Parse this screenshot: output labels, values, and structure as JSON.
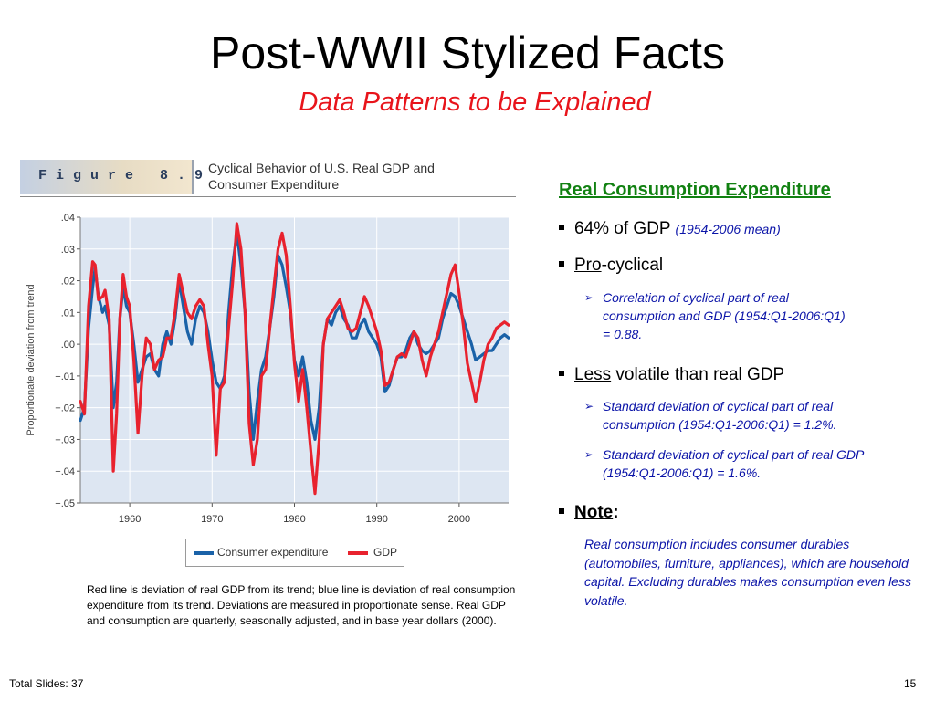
{
  "slide": {
    "title": "Post-WWII Stylized Facts",
    "subtitle": "Data Patterns to be Explained",
    "footer_left": "Total Slides: 37",
    "footer_right": "15"
  },
  "figure": {
    "tag": "Figure 8.9",
    "caption_line1": "Cyclical Behavior of U.S. Real GDP and",
    "caption_line2": "Consumer Expenditure",
    "note": "Red line is deviation of real GDP from its trend; blue line is deviation of real consumption expenditure from its trend.  Deviations are measured in proportionate sense.  Real GDP and consumption are quarterly, seasonally adjusted, and in base year dollars (2000)."
  },
  "panel": {
    "heading": "Real Consumption Expenditure",
    "share": {
      "text": "64% of GDP",
      "note": "(1954-2006 mean)"
    },
    "procyclical": {
      "prefix": "Pro",
      "suffix": "-cyclical",
      "detail": "Correlation of cyclical part of real consumption and GDP (1954:Q1-2006:Q1) = 0.88."
    },
    "volatility": {
      "prefix": "Less",
      "suffix": " volatile than real GDP",
      "detail1": "Standard deviation of cyclical part of real consumption (1954:Q1-2006:Q1) = 1.2%.",
      "detail2": "Standard deviation of cyclical part of real GDP (1954:Q1-2006:Q1) = 1.6%."
    },
    "note": {
      "label": "Note",
      "colon": ":",
      "text": "Real consumption includes consumer durables (automobiles, furniture, appliances), which are household capital. Excluding durables makes consumption even less volatile."
    }
  },
  "colors": {
    "gdp": "#e8222e",
    "consumption": "#1a62a8",
    "plot_bg": "#dde6f2",
    "heading": "#118111",
    "subtitle": "#e8141b",
    "bullet_detail": "#0b14a8"
  },
  "chart_data": {
    "type": "line",
    "ylabel": "Proportionate deviation from trend",
    "xlabel": "",
    "xlim": [
      1954,
      2006
    ],
    "ylim": [
      -0.05,
      0.04
    ],
    "x_ticks": [
      1960,
      1970,
      1980,
      1990,
      2000
    ],
    "x_tick_labels": [
      "1960",
      "1970",
      "1980",
      "1990",
      "2000"
    ],
    "y_ticks": [
      0.04,
      0.03,
      0.02,
      0.01,
      0.0,
      -0.01,
      -0.02,
      -0.03,
      -0.04,
      -0.05
    ],
    "y_tick_labels": [
      ".04",
      ".03",
      ".02",
      ".01",
      ".00",
      "−.01",
      "−.02",
      "−.03",
      "−.04",
      "−.05"
    ],
    "grid": true,
    "legend": "bottom-center",
    "series": [
      {
        "name": "Consumer expenditure",
        "color": "#1a62a8",
        "points": [
          [
            1954.0,
            -0.024
          ],
          [
            1954.5,
            -0.02
          ],
          [
            1955.0,
            0.005
          ],
          [
            1955.5,
            0.018
          ],
          [
            1955.8,
            0.024
          ],
          [
            1956.2,
            0.015
          ],
          [
            1956.7,
            0.01
          ],
          [
            1957.0,
            0.012
          ],
          [
            1957.5,
            0.006
          ],
          [
            1958.0,
            -0.02
          ],
          [
            1958.4,
            -0.012
          ],
          [
            1958.8,
            0.008
          ],
          [
            1959.2,
            0.018
          ],
          [
            1959.6,
            0.012
          ],
          [
            1960.0,
            0.01
          ],
          [
            1960.5,
            0.0
          ],
          [
            1961.0,
            -0.012
          ],
          [
            1961.5,
            -0.008
          ],
          [
            1962.0,
            -0.004
          ],
          [
            1962.5,
            -0.003
          ],
          [
            1963.0,
            -0.008
          ],
          [
            1963.5,
            -0.01
          ],
          [
            1964.0,
            0.0
          ],
          [
            1964.5,
            0.004
          ],
          [
            1965.0,
            0.0
          ],
          [
            1965.5,
            0.008
          ],
          [
            1966.0,
            0.02
          ],
          [
            1966.5,
            0.012
          ],
          [
            1967.0,
            0.004
          ],
          [
            1967.5,
            0.0
          ],
          [
            1968.0,
            0.008
          ],
          [
            1968.5,
            0.012
          ],
          [
            1969.0,
            0.01
          ],
          [
            1969.5,
            0.004
          ],
          [
            1970.0,
            -0.005
          ],
          [
            1970.5,
            -0.012
          ],
          [
            1971.0,
            -0.014
          ],
          [
            1971.5,
            -0.01
          ],
          [
            1972.0,
            0.01
          ],
          [
            1972.5,
            0.025
          ],
          [
            1973.0,
            0.035
          ],
          [
            1973.5,
            0.025
          ],
          [
            1974.0,
            0.01
          ],
          [
            1974.5,
            -0.015
          ],
          [
            1975.0,
            -0.03
          ],
          [
            1975.5,
            -0.018
          ],
          [
            1976.0,
            -0.008
          ],
          [
            1976.5,
            -0.004
          ],
          [
            1977.0,
            0.005
          ],
          [
            1977.5,
            0.015
          ],
          [
            1978.0,
            0.028
          ],
          [
            1978.5,
            0.025
          ],
          [
            1979.0,
            0.018
          ],
          [
            1979.5,
            0.01
          ],
          [
            1980.0,
            -0.005
          ],
          [
            1980.5,
            -0.01
          ],
          [
            1981.0,
            -0.004
          ],
          [
            1981.5,
            -0.012
          ],
          [
            1982.0,
            -0.024
          ],
          [
            1982.5,
            -0.03
          ],
          [
            1983.0,
            -0.02
          ],
          [
            1983.5,
            0.0
          ],
          [
            1984.0,
            0.008
          ],
          [
            1984.5,
            0.006
          ],
          [
            1985.0,
            0.01
          ],
          [
            1985.5,
            0.012
          ],
          [
            1986.0,
            0.008
          ],
          [
            1986.5,
            0.006
          ],
          [
            1987.0,
            0.002
          ],
          [
            1987.5,
            0.002
          ],
          [
            1988.0,
            0.006
          ],
          [
            1988.5,
            0.008
          ],
          [
            1989.0,
            0.004
          ],
          [
            1989.5,
            0.002
          ],
          [
            1990.0,
            0.0
          ],
          [
            1990.5,
            -0.004
          ],
          [
            1991.0,
            -0.015
          ],
          [
            1991.5,
            -0.013
          ],
          [
            1992.0,
            -0.008
          ],
          [
            1992.5,
            -0.004
          ],
          [
            1993.0,
            -0.004
          ],
          [
            1993.5,
            -0.002
          ],
          [
            1994.0,
            0.002
          ],
          [
            1994.5,
            0.004
          ],
          [
            1995.0,
            0.0
          ],
          [
            1995.5,
            -0.002
          ],
          [
            1996.0,
            -0.003
          ],
          [
            1996.5,
            -0.002
          ],
          [
            1997.0,
            0.0
          ],
          [
            1997.5,
            0.002
          ],
          [
            1998.0,
            0.008
          ],
          [
            1998.5,
            0.012
          ],
          [
            1999.0,
            0.016
          ],
          [
            1999.5,
            0.015
          ],
          [
            2000.0,
            0.012
          ],
          [
            2000.5,
            0.008
          ],
          [
            2001.0,
            0.004
          ],
          [
            2001.5,
            0.0
          ],
          [
            2002.0,
            -0.005
          ],
          [
            2002.5,
            -0.004
          ],
          [
            2003.0,
            -0.003
          ],
          [
            2003.5,
            -0.002
          ],
          [
            2004.0,
            -0.002
          ],
          [
            2004.5,
            0.0
          ],
          [
            2005.0,
            0.002
          ],
          [
            2005.5,
            0.003
          ],
          [
            2006.0,
            0.002
          ]
        ]
      },
      {
        "name": "GDP",
        "color": "#e8222e",
        "points": [
          [
            1954.0,
            -0.018
          ],
          [
            1954.5,
            -0.022
          ],
          [
            1955.0,
            0.012
          ],
          [
            1955.5,
            0.026
          ],
          [
            1955.8,
            0.025
          ],
          [
            1956.2,
            0.014
          ],
          [
            1956.7,
            0.015
          ],
          [
            1957.0,
            0.017
          ],
          [
            1957.5,
            0.008
          ],
          [
            1958.0,
            -0.04
          ],
          [
            1958.4,
            -0.022
          ],
          [
            1958.8,
            0.008
          ],
          [
            1959.2,
            0.022
          ],
          [
            1959.6,
            0.015
          ],
          [
            1960.0,
            0.012
          ],
          [
            1960.5,
            -0.005
          ],
          [
            1961.0,
            -0.028
          ],
          [
            1961.5,
            -0.01
          ],
          [
            1962.0,
            0.002
          ],
          [
            1962.5,
            0.0
          ],
          [
            1963.0,
            -0.008
          ],
          [
            1963.5,
            -0.005
          ],
          [
            1964.0,
            -0.004
          ],
          [
            1964.5,
            0.002
          ],
          [
            1965.0,
            0.002
          ],
          [
            1965.5,
            0.01
          ],
          [
            1966.0,
            0.022
          ],
          [
            1966.5,
            0.016
          ],
          [
            1967.0,
            0.01
          ],
          [
            1967.5,
            0.008
          ],
          [
            1968.0,
            0.012
          ],
          [
            1968.5,
            0.014
          ],
          [
            1969.0,
            0.012
          ],
          [
            1969.5,
            0.0
          ],
          [
            1970.0,
            -0.01
          ],
          [
            1970.5,
            -0.035
          ],
          [
            1971.0,
            -0.014
          ],
          [
            1971.5,
            -0.012
          ],
          [
            1972.0,
            0.005
          ],
          [
            1972.5,
            0.02
          ],
          [
            1973.0,
            0.038
          ],
          [
            1973.5,
            0.03
          ],
          [
            1974.0,
            0.01
          ],
          [
            1974.5,
            -0.025
          ],
          [
            1975.0,
            -0.038
          ],
          [
            1975.5,
            -0.03
          ],
          [
            1976.0,
            -0.01
          ],
          [
            1976.5,
            -0.008
          ],
          [
            1977.0,
            0.005
          ],
          [
            1977.5,
            0.018
          ],
          [
            1978.0,
            0.03
          ],
          [
            1978.5,
            0.035
          ],
          [
            1979.0,
            0.028
          ],
          [
            1979.5,
            0.012
          ],
          [
            1980.0,
            -0.006
          ],
          [
            1980.5,
            -0.018
          ],
          [
            1981.0,
            -0.008
          ],
          [
            1981.5,
            -0.02
          ],
          [
            1982.0,
            -0.034
          ],
          [
            1982.5,
            -0.047
          ],
          [
            1983.0,
            -0.03
          ],
          [
            1983.5,
            0.0
          ],
          [
            1984.0,
            0.008
          ],
          [
            1984.5,
            0.01
          ],
          [
            1985.0,
            0.012
          ],
          [
            1985.5,
            0.014
          ],
          [
            1986.0,
            0.01
          ],
          [
            1986.5,
            0.005
          ],
          [
            1987.0,
            0.004
          ],
          [
            1987.5,
            0.005
          ],
          [
            1988.0,
            0.01
          ],
          [
            1988.5,
            0.015
          ],
          [
            1989.0,
            0.012
          ],
          [
            1989.5,
            0.008
          ],
          [
            1990.0,
            0.004
          ],
          [
            1990.5,
            -0.002
          ],
          [
            1991.0,
            -0.013
          ],
          [
            1991.5,
            -0.012
          ],
          [
            1992.0,
            -0.008
          ],
          [
            1992.5,
            -0.004
          ],
          [
            1993.0,
            -0.003
          ],
          [
            1993.5,
            -0.004
          ],
          [
            1994.0,
            0.0
          ],
          [
            1994.5,
            0.004
          ],
          [
            1995.0,
            0.002
          ],
          [
            1995.5,
            -0.005
          ],
          [
            1996.0,
            -0.01
          ],
          [
            1996.5,
            -0.004
          ],
          [
            1997.0,
            0.0
          ],
          [
            1997.5,
            0.004
          ],
          [
            1998.0,
            0.01
          ],
          [
            1998.5,
            0.016
          ],
          [
            1999.0,
            0.022
          ],
          [
            1999.5,
            0.025
          ],
          [
            2000.0,
            0.016
          ],
          [
            2000.5,
            0.006
          ],
          [
            2001.0,
            -0.006
          ],
          [
            2001.5,
            -0.012
          ],
          [
            2002.0,
            -0.018
          ],
          [
            2002.5,
            -0.012
          ],
          [
            2003.0,
            -0.005
          ],
          [
            2003.5,
            0.0
          ],
          [
            2004.0,
            0.002
          ],
          [
            2004.5,
            0.005
          ],
          [
            2005.0,
            0.006
          ],
          [
            2005.5,
            0.007
          ],
          [
            2006.0,
            0.006
          ]
        ]
      }
    ]
  }
}
